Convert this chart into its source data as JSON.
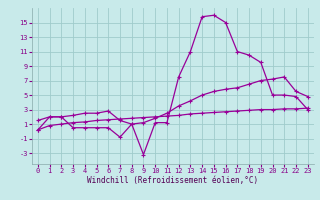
{
  "xlabel": "Windchill (Refroidissement éolien,°C)",
  "bg_color": "#c8eaea",
  "grid_color": "#a0cccc",
  "line_color": "#990099",
  "x_ticks": [
    0,
    1,
    2,
    3,
    4,
    5,
    6,
    7,
    8,
    9,
    10,
    11,
    12,
    13,
    14,
    15,
    16,
    17,
    18,
    19,
    20,
    21,
    22,
    23
  ],
  "y_ticks": [
    -3,
    -1,
    1,
    3,
    5,
    7,
    9,
    11,
    13,
    15
  ],
  "ylim": [
    -4.5,
    17.0
  ],
  "xlim": [
    -0.5,
    23.5
  ],
  "line1_x": [
    0,
    1,
    2,
    3,
    4,
    5,
    6,
    7,
    8,
    9,
    10,
    11,
    12,
    13,
    14,
    15,
    16,
    17,
    18,
    19,
    20,
    21,
    22,
    23
  ],
  "line1_y": [
    0.2,
    2.0,
    2.0,
    0.5,
    0.5,
    0.5,
    0.5,
    -0.8,
    1.0,
    -3.2,
    1.2,
    1.2,
    7.5,
    11.0,
    15.8,
    16.0,
    15.0,
    11.0,
    10.5,
    9.5,
    5.0,
    5.0,
    4.8,
    3.0
  ],
  "line2_x": [
    0,
    1,
    2,
    3,
    4,
    5,
    6,
    7,
    8,
    9,
    10,
    11,
    12,
    13,
    14,
    15,
    16,
    17,
    18,
    19,
    20,
    21,
    22,
    23
  ],
  "line2_y": [
    1.5,
    2.0,
    2.0,
    2.2,
    2.5,
    2.5,
    2.8,
    1.5,
    1.0,
    1.2,
    1.8,
    2.5,
    3.5,
    4.2,
    5.0,
    5.5,
    5.8,
    6.0,
    6.5,
    7.0,
    7.2,
    7.5,
    5.5,
    4.8
  ],
  "line3_x": [
    0,
    1,
    2,
    3,
    4,
    5,
    6,
    7,
    8,
    9,
    10,
    11,
    12,
    13,
    14,
    15,
    16,
    17,
    18,
    19,
    20,
    21,
    22,
    23
  ],
  "line3_y": [
    0.2,
    0.8,
    1.0,
    1.2,
    1.3,
    1.5,
    1.6,
    1.7,
    1.8,
    1.9,
    2.0,
    2.1,
    2.2,
    2.4,
    2.5,
    2.6,
    2.7,
    2.8,
    2.9,
    3.0,
    3.0,
    3.1,
    3.1,
    3.2
  ],
  "tick_fontsize": 5,
  "xlabel_fontsize": 5.5,
  "tick_color": "#880088",
  "label_color": "#550055"
}
